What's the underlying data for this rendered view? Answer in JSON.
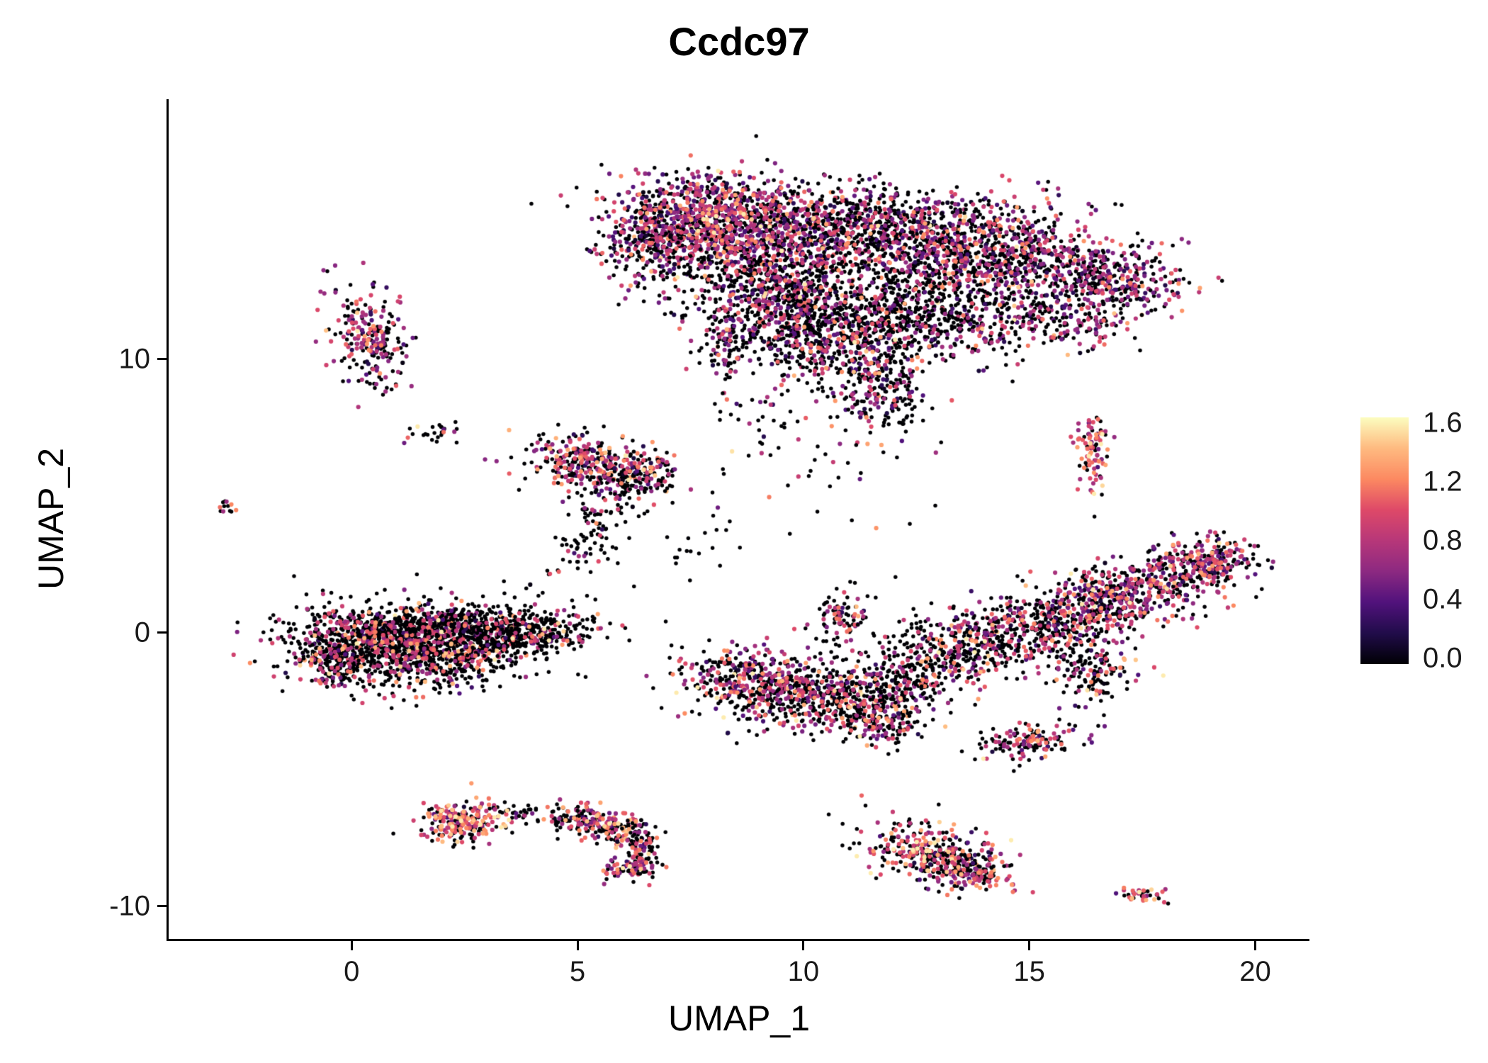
{
  "title": "Ccdc97",
  "axes": {
    "x": {
      "label": "UMAP_1",
      "range": [
        -4.05,
        21.2
      ],
      "ticks": [
        {
          "value": 0,
          "label": "0"
        },
        {
          "value": 5,
          "label": "5"
        },
        {
          "value": 10,
          "label": "10"
        },
        {
          "value": 15,
          "label": "15"
        },
        {
          "value": 20,
          "label": "20"
        }
      ]
    },
    "y": {
      "label": "UMAP_2",
      "range": [
        -11.2,
        19.5
      ],
      "ticks": [
        {
          "value": -10,
          "label": "-10"
        },
        {
          "value": 0,
          "label": "0"
        },
        {
          "value": 10,
          "label": "10"
        }
      ]
    }
  },
  "colorbar": {
    "min": 0.0,
    "max": 1.6,
    "ticks": [
      {
        "value": 1.6,
        "label": "1.6"
      },
      {
        "value": 1.2,
        "label": "1.2"
      },
      {
        "value": 0.8,
        "label": "0.8"
      },
      {
        "value": 0.4,
        "label": "0.4"
      },
      {
        "value": 0.0,
        "label": "0.0"
      }
    ],
    "colormap_name": "magma",
    "gradient_stops": [
      "#000004",
      "#210c4a",
      "#51127c",
      "#8c2981",
      "#b73779",
      "#de4968",
      "#fc8961",
      "#feba80",
      "#fcfdbf"
    ]
  },
  "chart_data": {
    "type": "scatter",
    "title": "Ccdc97",
    "xlabel": "UMAP_1",
    "ylabel": "UMAP_2",
    "xlim": [
      -4.05,
      21.2
    ],
    "ylim": [
      -11.2,
      19.5
    ],
    "legend_position": "right",
    "grid": false,
    "value_range": [
      0.0,
      1.6
    ],
    "point_radius_px": 3.1,
    "seed": 42,
    "blob_fields": [
      "cx",
      "cy",
      "sx",
      "sy",
      "rot_deg",
      "n",
      "frac_zero",
      "mean_expr"
    ],
    "clusters": [
      {
        "name": "top-main-left-lobe",
        "blobs": [
          [
            8.3,
            14.9,
            1.25,
            0.85,
            -10,
            1300,
            0.38,
            0.72
          ],
          [
            6.6,
            14.2,
            0.55,
            0.8,
            0,
            250,
            0.5,
            0.7
          ],
          [
            11.3,
            15.0,
            1.1,
            0.7,
            0,
            500,
            0.62,
            0.7
          ]
        ]
      },
      {
        "name": "top-main-right-lobe",
        "blobs": [
          [
            14.2,
            13.9,
            1.5,
            0.95,
            -12,
            1000,
            0.48,
            0.72
          ],
          [
            16.9,
            12.9,
            0.75,
            0.55,
            -20,
            280,
            0.5,
            0.7
          ],
          [
            15.7,
            11.5,
            0.8,
            0.5,
            -15,
            180,
            0.55,
            0.7
          ],
          [
            13.1,
            11.4,
            1.0,
            0.75,
            0,
            380,
            0.68,
            0.7
          ]
        ]
      },
      {
        "name": "top-main-lower",
        "blobs": [
          [
            9.4,
            12.3,
            1.05,
            1.0,
            0,
            800,
            0.62,
            0.68
          ],
          [
            10.7,
            10.7,
            0.9,
            0.85,
            0,
            520,
            0.66,
            0.68
          ],
          [
            11.7,
            8.9,
            0.5,
            0.75,
            0,
            200,
            0.55,
            0.72
          ],
          [
            8.3,
            10.3,
            0.16,
            0.8,
            0,
            70,
            0.5,
            0.7
          ],
          [
            12.2,
            13.2,
            1.2,
            1.0,
            0,
            300,
            0.7,
            0.7
          ]
        ]
      },
      {
        "name": "left-small",
        "blobs": [
          [
            0.35,
            10.9,
            0.42,
            0.95,
            5,
            230,
            0.48,
            0.72
          ]
        ]
      },
      {
        "name": "far-left-dot",
        "blobs": [
          [
            -2.72,
            4.6,
            0.1,
            0.13,
            0,
            12,
            0.5,
            0.9
          ]
        ]
      },
      {
        "name": "small-sparse-upper-left",
        "blobs": [
          [
            1.85,
            7.3,
            0.3,
            0.28,
            0,
            26,
            0.75,
            0.7
          ]
        ]
      },
      {
        "name": "mid-left",
        "blobs": [
          [
            5.2,
            6.3,
            0.75,
            0.5,
            -15,
            300,
            0.45,
            0.85
          ],
          [
            6.3,
            5.7,
            0.45,
            0.4,
            0,
            150,
            0.5,
            0.8
          ],
          [
            5.55,
            4.6,
            0.45,
            0.7,
            0,
            80,
            0.75,
            0.7
          ],
          [
            5.1,
            3.0,
            0.35,
            0.45,
            0,
            30,
            0.8,
            0.7
          ]
        ]
      },
      {
        "name": "left-large",
        "blobs": [
          [
            1.2,
            -0.45,
            1.25,
            0.72,
            -5,
            1500,
            0.74,
            0.85
          ],
          [
            3.7,
            -0.05,
            0.85,
            0.42,
            8,
            420,
            0.78,
            0.85
          ],
          [
            -0.35,
            -0.9,
            0.35,
            0.5,
            0,
            170,
            0.7,
            0.85
          ],
          [
            2.2,
            0.4,
            0.8,
            0.3,
            0,
            200,
            0.75,
            0.85
          ]
        ]
      },
      {
        "name": "center-right-band",
        "blobs": [
          [
            8.9,
            -1.8,
            0.85,
            0.6,
            -15,
            420,
            0.55,
            0.85
          ],
          [
            10.6,
            -2.4,
            0.9,
            0.65,
            0,
            430,
            0.6,
            0.8
          ],
          [
            11.9,
            -3.1,
            0.5,
            0.5,
            0,
            170,
            0.55,
            0.85
          ],
          [
            10.9,
            0.5,
            0.35,
            0.55,
            0,
            90,
            0.6,
            0.8
          ],
          [
            12.3,
            -1.8,
            0.5,
            0.5,
            0,
            120,
            0.65,
            0.8
          ],
          [
            13.4,
            -0.6,
            1.0,
            0.65,
            10,
            380,
            0.68,
            0.8
          ],
          [
            15.4,
            0.3,
            1.0,
            0.6,
            15,
            430,
            0.6,
            0.78
          ],
          [
            17.2,
            1.4,
            0.95,
            0.55,
            20,
            430,
            0.5,
            0.75
          ],
          [
            18.8,
            2.6,
            0.6,
            0.45,
            20,
            260,
            0.45,
            0.75
          ],
          [
            16.4,
            -1.3,
            0.45,
            0.6,
            0,
            150,
            0.6,
            0.8
          ]
        ]
      },
      {
        "name": "small-vertical-right",
        "blobs": [
          [
            16.35,
            6.6,
            0.17,
            0.75,
            0,
            95,
            0.25,
            0.95
          ]
        ]
      },
      {
        "name": "small-diagonal",
        "blobs": [
          [
            15.0,
            -4.0,
            0.55,
            0.28,
            15,
            140,
            0.5,
            0.85
          ]
        ]
      },
      {
        "name": "bottom-left",
        "blobs": [
          [
            2.4,
            -6.9,
            0.45,
            0.38,
            0,
            230,
            0.35,
            1.0
          ],
          [
            3.6,
            -6.6,
            0.35,
            0.2,
            0,
            35,
            0.7,
            0.8
          ],
          [
            4.9,
            -6.8,
            0.45,
            0.25,
            -10,
            100,
            0.55,
            0.85
          ],
          [
            5.8,
            -7.15,
            0.45,
            0.3,
            -15,
            130,
            0.5,
            0.9
          ],
          [
            6.4,
            -8.0,
            0.22,
            0.5,
            0,
            90,
            0.5,
            0.9
          ],
          [
            6.2,
            -8.6,
            0.35,
            0.18,
            10,
            70,
            0.45,
            0.9
          ]
        ]
      },
      {
        "name": "bottom-middle",
        "blobs": [
          [
            12.8,
            -8.1,
            0.75,
            0.5,
            -20,
            340,
            0.45,
            0.95
          ],
          [
            13.8,
            -8.7,
            0.45,
            0.3,
            -15,
            130,
            0.5,
            0.9
          ]
        ]
      },
      {
        "name": "bottom-right-tiny",
        "blobs": [
          [
            17.5,
            -9.6,
            0.28,
            0.13,
            -10,
            40,
            0.35,
            1.0
          ]
        ]
      },
      {
        "name": "sparse-field",
        "blobs": [
          [
            10.4,
            6.5,
            1.4,
            1.3,
            0,
            45,
            0.7,
            0.75
          ],
          [
            7.5,
            3.6,
            0.8,
            1.0,
            0,
            22,
            0.8,
            0.7
          ],
          [
            9.0,
            7.8,
            0.8,
            0.8,
            0,
            30,
            0.6,
            0.75
          ],
          [
            4.4,
            1.5,
            0.5,
            0.6,
            0,
            18,
            0.8,
            0.7
          ]
        ]
      }
    ]
  }
}
